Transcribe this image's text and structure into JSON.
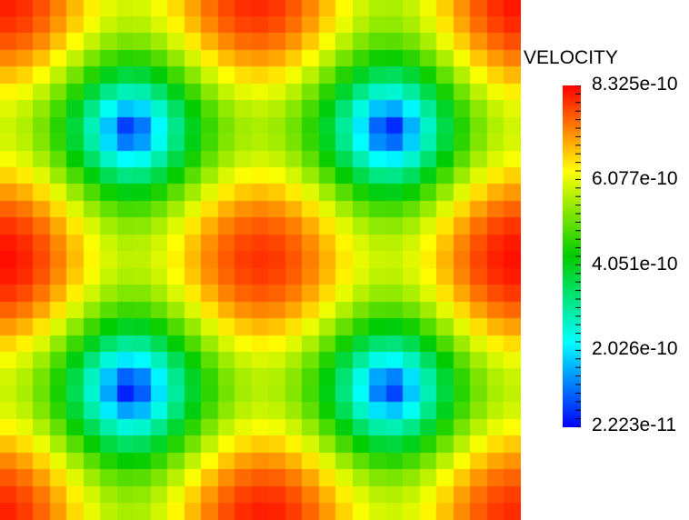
{
  "legend": {
    "title": "VELOCITY",
    "labels": [
      "8.325e-10",
      "6.077e-10",
      "4.051e-10",
      "2.026e-10",
      "2.223e-11"
    ],
    "min": 2.223e-11,
    "max": 8.325e-10
  },
  "field": {
    "grid_cells": 31,
    "pattern": "periodic-wave-cells"
  }
}
